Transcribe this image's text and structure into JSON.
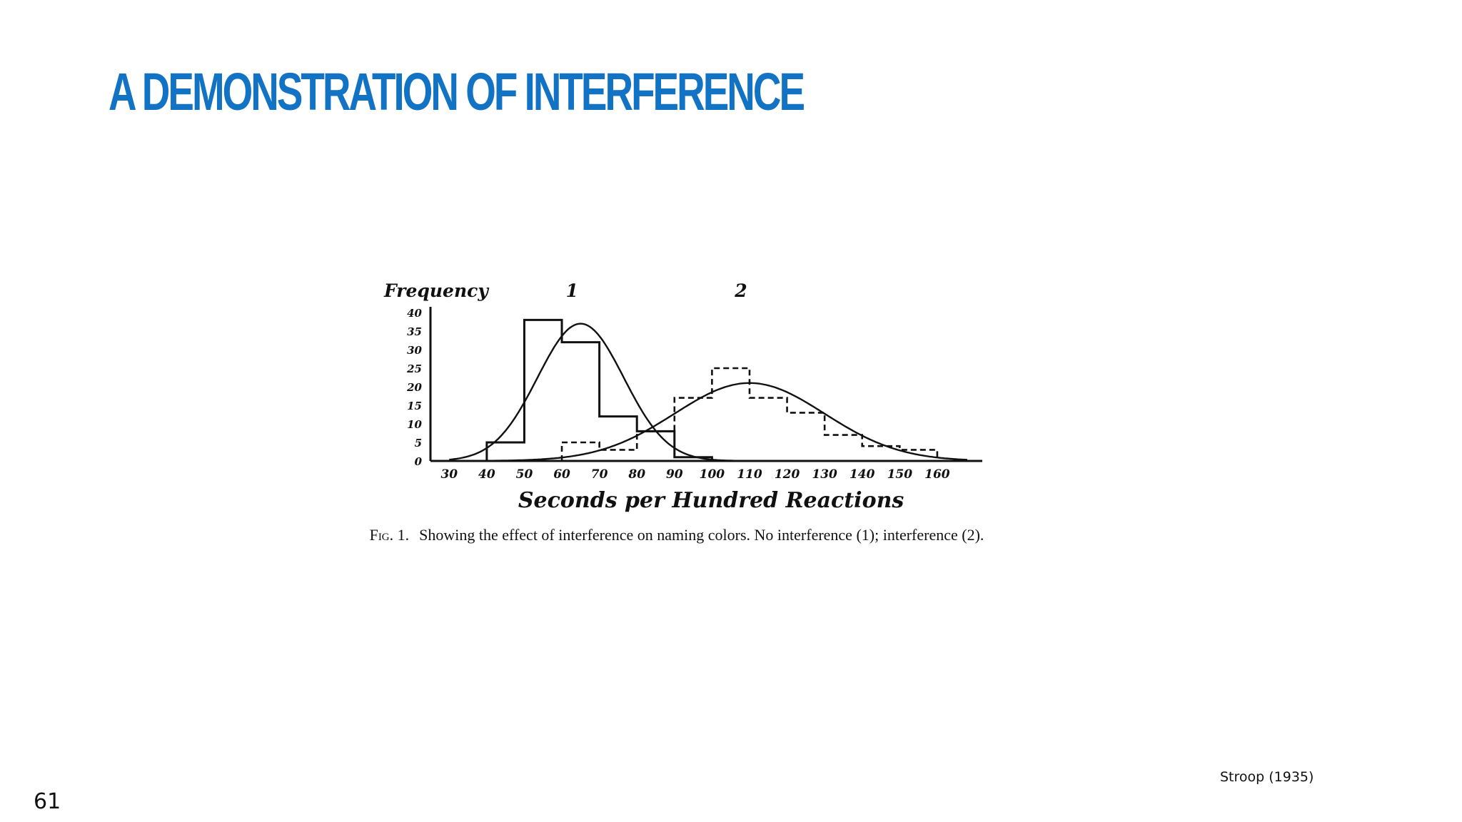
{
  "slide": {
    "title": "A DEMONSTRATION OF INTERFERENCE",
    "citation": "Stroop (1935)",
    "page_number": "61",
    "title_color": "#1272c3"
  },
  "figure": {
    "caption_label": "Fig. 1.",
    "caption_text": "Showing the effect of interference on naming colors.   No interference (1); interference (2)."
  },
  "chart_data": {
    "type": "bar",
    "title": "",
    "xlabel": "Seconds per Hundred Reactions",
    "ylabel": "Frequency",
    "xlim": [
      25,
      172
    ],
    "ylim": [
      0,
      40
    ],
    "x_ticks": [
      "30",
      "40",
      "50",
      "60",
      "70",
      "80",
      "90",
      "100",
      "110",
      "120",
      "130",
      "140",
      "150",
      "160"
    ],
    "y_ticks": [
      "40",
      "35",
      "30",
      "25",
      "20",
      "15",
      "10",
      "5",
      "0"
    ],
    "series": [
      {
        "name": "1",
        "style": "solid histogram",
        "bin_edges": [
          40,
          50,
          60,
          70,
          80,
          90,
          100
        ],
        "values": [
          5,
          38,
          32,
          12,
          8,
          1
        ],
        "fitted_curve": {
          "mean": 65,
          "sd": 11.5,
          "peak": 37
        }
      },
      {
        "name": "2",
        "style": "dashed histogram",
        "bin_edges": [
          60,
          70,
          80,
          90,
          100,
          110,
          120,
          130,
          140,
          150,
          160
        ],
        "values": [
          5,
          3,
          8,
          17,
          25,
          17,
          13,
          7,
          4,
          3
        ],
        "fitted_curve": {
          "mean": 110,
          "sd": 20,
          "peak": 21
        }
      }
    ],
    "legend": "numerals above each distribution",
    "grid": false,
    "colors": {
      "ink": "#111111"
    }
  }
}
